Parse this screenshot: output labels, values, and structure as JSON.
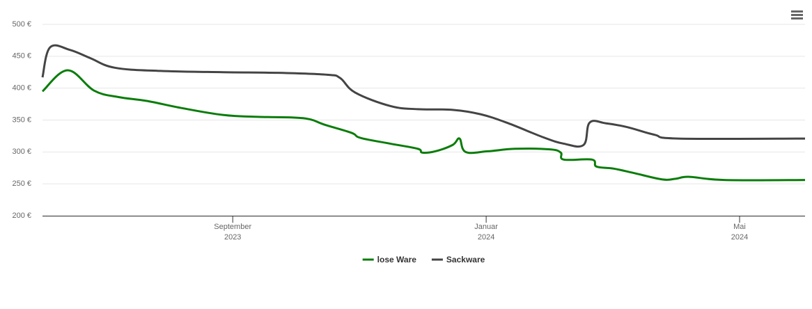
{
  "chart_data": {
    "type": "line",
    "xlim": [
      2023.417,
      2024.419
    ],
    "xticks": [
      {
        "value": 2023.667,
        "label": "September 2023"
      },
      {
        "value": 2024.0,
        "label": "Januar 2024"
      },
      {
        "value": 2024.333,
        "label": "Mai 2024"
      }
    ],
    "ylim": [
      200,
      500
    ],
    "yticks": [
      {
        "value": 200,
        "label": "200 €"
      },
      {
        "value": 250,
        "label": "250 €"
      },
      {
        "value": 300,
        "label": "300 €"
      },
      {
        "value": 350,
        "label": "350 €"
      },
      {
        "value": 400,
        "label": "400 €"
      },
      {
        "value": 450,
        "label": "450 €"
      },
      {
        "value": 500,
        "label": "500 €"
      }
    ],
    "grid": true,
    "legend": "bottom",
    "series": [
      {
        "name": "lose Ware",
        "color": "#0a7d0a",
        "x": [
          2023.417,
          2023.45,
          2023.485,
          2023.517,
          2023.554,
          2023.599,
          2023.654,
          2023.7,
          2023.746,
          2023.769,
          2023.787,
          2023.823,
          2023.835,
          2023.874,
          2023.91,
          2023.916,
          2023.933,
          2023.956,
          2023.965,
          2023.973,
          2024.002,
          2024.038,
          2024.084,
          2024.098,
          2024.102,
          2024.139,
          2024.145,
          2024.167,
          2024.194,
          2024.231,
          2024.249,
          2024.267,
          2024.313,
          2024.419
        ],
        "values": [
          395,
          428,
          396,
          386,
          380,
          369,
          358,
          355,
          354,
          351,
          343,
          330,
          322,
          313,
          305,
          299,
          301,
          311,
          321,
          300,
          301,
          305,
          304,
          299,
          288,
          288,
          277,
          274,
          267,
          257,
          258,
          261,
          256,
          256
        ]
      },
      {
        "name": "Sackware",
        "color": "#444444",
        "x": [
          2023.417,
          2023.427,
          2023.453,
          2023.48,
          2023.512,
          2023.572,
          2023.654,
          2023.727,
          2023.791,
          2023.808,
          2023.828,
          2023.874,
          2023.91,
          2023.956,
          2023.993,
          2024.029,
          2024.075,
          2024.102,
          2024.128,
          2024.136,
          2024.157,
          2024.185,
          2024.221,
          2024.253,
          2024.419
        ],
        "values": [
          417,
          464,
          460,
          447,
          432,
          427,
          425,
          424,
          421,
          416,
          393,
          372,
          367,
          366,
          359,
          345,
          323,
          313,
          311,
          346,
          345,
          339,
          327,
          321,
          321
        ]
      }
    ]
  }
}
